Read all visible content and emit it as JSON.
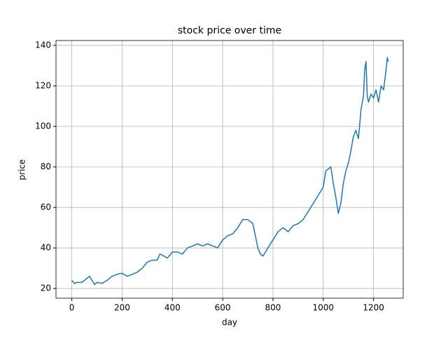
{
  "chart_data": {
    "type": "line",
    "title": "stock price over time",
    "xlabel": "day",
    "ylabel": "price",
    "x": [
      0,
      10,
      20,
      40,
      60,
      70,
      80,
      90,
      100,
      120,
      140,
      160,
      180,
      200,
      220,
      240,
      260,
      280,
      300,
      320,
      340,
      350,
      360,
      380,
      400,
      420,
      440,
      460,
      480,
      500,
      520,
      540,
      560,
      580,
      600,
      620,
      640,
      660,
      680,
      700,
      720,
      740,
      750,
      760,
      780,
      800,
      820,
      840,
      860,
      880,
      900,
      920,
      940,
      960,
      980,
      1000,
      1010,
      1020,
      1030,
      1040,
      1050,
      1060,
      1070,
      1080,
      1090,
      1100,
      1110,
      1120,
      1130,
      1140,
      1150,
      1160,
      1165,
      1170,
      1175,
      1180,
      1190,
      1200,
      1210,
      1220,
      1230,
      1240,
      1250,
      1255,
      1258
    ],
    "series": [
      {
        "color": "#1f77b4",
        "values": [
          24,
          22.5,
          23,
          23,
          25,
          26,
          24,
          22,
          23,
          22.5,
          24,
          26,
          27,
          27.5,
          26,
          27,
          28,
          30,
          33,
          34,
          34,
          37,
          36.5,
          35,
          38,
          38,
          37,
          40,
          41,
          42,
          41,
          42,
          41,
          40,
          44,
          46,
          47,
          50,
          54,
          54,
          52,
          40,
          37,
          36,
          40,
          44,
          48,
          50,
          48,
          51,
          52,
          54,
          58,
          62,
          66,
          70,
          78,
          79,
          80,
          72,
          65,
          57,
          62,
          72,
          78,
          82,
          88,
          95,
          98,
          94,
          108,
          115,
          128,
          132,
          115,
          112,
          116,
          114,
          118,
          112,
          120,
          118,
          128,
          134,
          132
        ]
      }
    ],
    "xlim": [
      -63,
      1318
    ],
    "ylim": [
      15.2,
      142.4
    ],
    "xticks": [
      0,
      200,
      400,
      600,
      800,
      1000,
      1200
    ],
    "yticks": [
      20,
      40,
      60,
      80,
      100,
      120,
      140
    ],
    "grid": true
  }
}
